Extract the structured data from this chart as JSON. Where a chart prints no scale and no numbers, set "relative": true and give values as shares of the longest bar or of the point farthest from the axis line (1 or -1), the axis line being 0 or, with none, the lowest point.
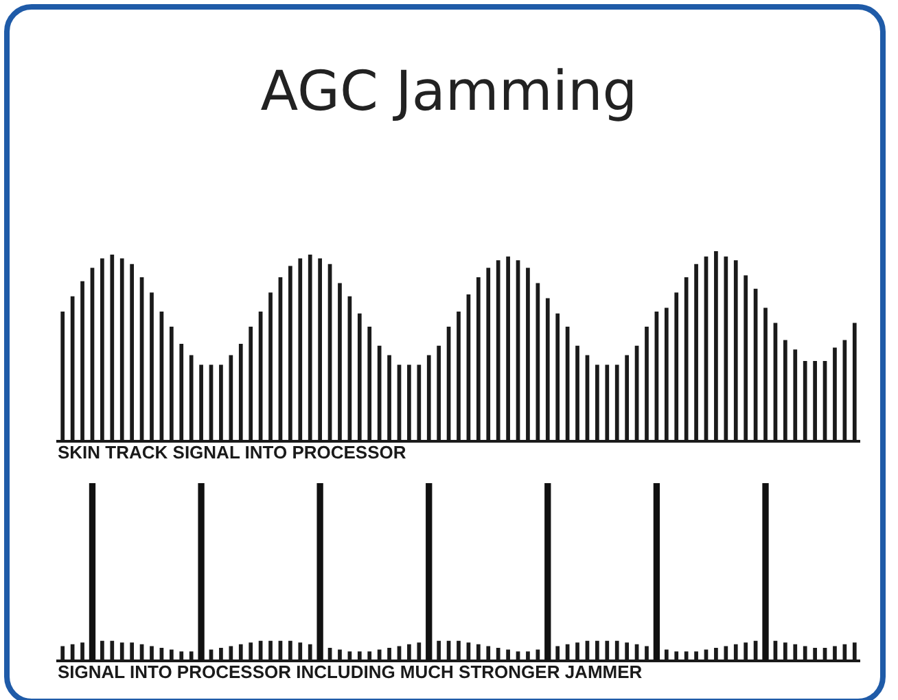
{
  "chart_data": [
    {
      "type": "bar",
      "title": "AGC Jamming",
      "xlabel": "SKIN TRACK SIGNAL INTO PROCESSOR",
      "relative": true,
      "categories": [
        null,
        null,
        null,
        null,
        null,
        null,
        null,
        null,
        null,
        null,
        null,
        null,
        null,
        null,
        null,
        null,
        null,
        null,
        null,
        null,
        null,
        null,
        null,
        null,
        null,
        null,
        null,
        null,
        null,
        null,
        null,
        null,
        null,
        null,
        null,
        null,
        null,
        null,
        null,
        null,
        null,
        null,
        null,
        null,
        null,
        null,
        null,
        null,
        null,
        null,
        null,
        null,
        null,
        null,
        null,
        null,
        null,
        null,
        null,
        null,
        null,
        null,
        null,
        null,
        null,
        null,
        null,
        null,
        null,
        null,
        null,
        null,
        null,
        null,
        null,
        null,
        null,
        null,
        null,
        null,
        null
      ],
      "series": [
        {
          "color": "#1a1a1a",
          "values": [
            0.68,
            0.76,
            0.84,
            0.91,
            0.96,
            0.98,
            0.96,
            0.93,
            0.86,
            0.78,
            0.68,
            0.6,
            0.51,
            0.45,
            0.4,
            0.4,
            0.4,
            0.45,
            0.51,
            0.6,
            0.68,
            0.78,
            0.86,
            0.92,
            0.96,
            0.98,
            0.96,
            0.93,
            0.83,
            0.76,
            0.67,
            0.6,
            0.5,
            0.45,
            0.4,
            0.4,
            0.4,
            0.45,
            0.5,
            0.6,
            0.68,
            0.77,
            0.86,
            0.91,
            0.95,
            0.97,
            0.95,
            0.91,
            0.83,
            0.75,
            0.67,
            0.6,
            0.5,
            0.45,
            0.4,
            0.4,
            0.4,
            0.45,
            0.5,
            0.6,
            0.68,
            0.7,
            0.78,
            0.86,
            0.93,
            0.97,
            1,
            0.97,
            0.95,
            0.87,
            0.8,
            0.7,
            0.62,
            0.53,
            0.48,
            0.42,
            0.42,
            0.42,
            0.49,
            0.53,
            0.62
          ]
        }
      ]
    },
    {
      "type": "bar",
      "xlabel": "SIGNAL INTO PROCESSOR INCLUDING MUCH STRONGER JAMMER",
      "relative": true,
      "categories": [
        null,
        null,
        null,
        null,
        null,
        null,
        null,
        null,
        null,
        null,
        null,
        null,
        null,
        null,
        null,
        null,
        null,
        null,
        null,
        null,
        null,
        null,
        null,
        null,
        null,
        null,
        null,
        null,
        null,
        null,
        null,
        null,
        null,
        null,
        null,
        null,
        null,
        null,
        null,
        null,
        null,
        null,
        null,
        null,
        null,
        null,
        null,
        null,
        null,
        null,
        null,
        null,
        null,
        null,
        null,
        null,
        null,
        null,
        null,
        null,
        null,
        null,
        null,
        null,
        null,
        null,
        null,
        null,
        null,
        null,
        null,
        null,
        null,
        null,
        null,
        null,
        null,
        null,
        null,
        null,
        null
      ],
      "series": [
        {
          "color": "#1a1a1a",
          "values": [
            0.08,
            0.09,
            0.1,
            null,
            0.11,
            0.11,
            0.1,
            0.1,
            0.09,
            0.08,
            0.07,
            0.06,
            0.05,
            0.05,
            null,
            0.06,
            0.07,
            0.08,
            0.09,
            0.1,
            0.11,
            0.11,
            0.11,
            0.11,
            0.1,
            0.09,
            null,
            0.07,
            0.06,
            0.05,
            0.05,
            0.05,
            0.06,
            0.07,
            0.08,
            0.09,
            0.1,
            null,
            0.11,
            0.11,
            0.11,
            0.1,
            0.09,
            0.08,
            0.07,
            0.06,
            0.05,
            0.05,
            0.06,
            null,
            0.08,
            0.09,
            0.1,
            0.11,
            0.11,
            0.11,
            0.11,
            0.1,
            0.09,
            0.08,
            null,
            0.06,
            0.05,
            0.05,
            0.05,
            0.06,
            0.07,
            0.08,
            0.09,
            0.1,
            0.11,
            null,
            0.11,
            0.1,
            0.09,
            0.08,
            0.07,
            0.07,
            0.08,
            0.09,
            0.1
          ]
        },
        {
          "color": "#111111",
          "values": [
            null,
            null,
            null,
            1,
            null,
            null,
            null,
            null,
            null,
            null,
            null,
            null,
            null,
            null,
            1,
            null,
            null,
            null,
            null,
            null,
            null,
            null,
            null,
            null,
            null,
            null,
            1,
            null,
            null,
            null,
            null,
            null,
            null,
            null,
            null,
            null,
            null,
            1,
            null,
            null,
            null,
            null,
            null,
            null,
            null,
            null,
            null,
            null,
            null,
            1,
            null,
            null,
            null,
            null,
            null,
            null,
            null,
            null,
            null,
            null,
            1,
            null,
            null,
            null,
            null,
            null,
            null,
            null,
            null,
            null,
            null,
            1,
            null,
            null,
            null,
            null,
            null,
            null,
            null,
            null,
            null
          ]
        }
      ]
    }
  ]
}
